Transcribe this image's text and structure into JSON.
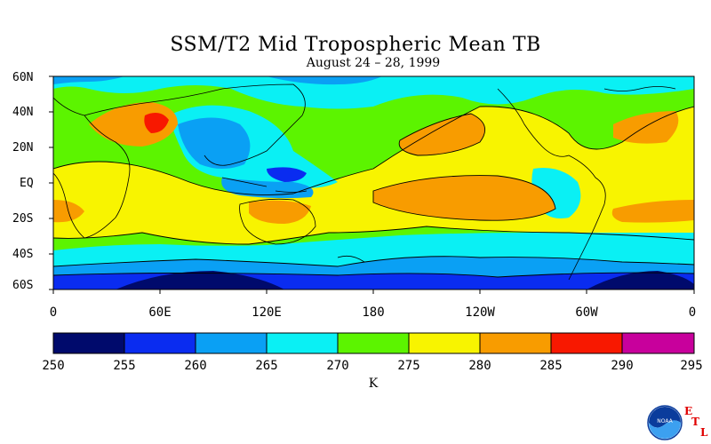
{
  "title": "SSM/T2 Mid Tropospheric Mean TB",
  "subtitle": "August 24 – 28, 1999",
  "lat_labels": [
    "60N",
    "40N",
    "20N",
    "EQ",
    "20S",
    "40S",
    "60S"
  ],
  "lon_labels": [
    "0",
    "60E",
    "120E",
    "180",
    "120W",
    "60W",
    "0"
  ],
  "colorbar": {
    "ticks": [
      "250",
      "255",
      "260",
      "265",
      "270",
      "275",
      "280",
      "285",
      "290",
      "295"
    ],
    "unit": "K",
    "colors": [
      "#000a6c",
      "#0a2cf0",
      "#0aa0f4",
      "#0af0f4",
      "#5cf400",
      "#f8f400",
      "#f89c00",
      "#f81800",
      "#c8009c"
    ]
  },
  "logo": {
    "text": "NOAA",
    "etl_letters": [
      "E",
      "T",
      "L"
    ]
  }
}
